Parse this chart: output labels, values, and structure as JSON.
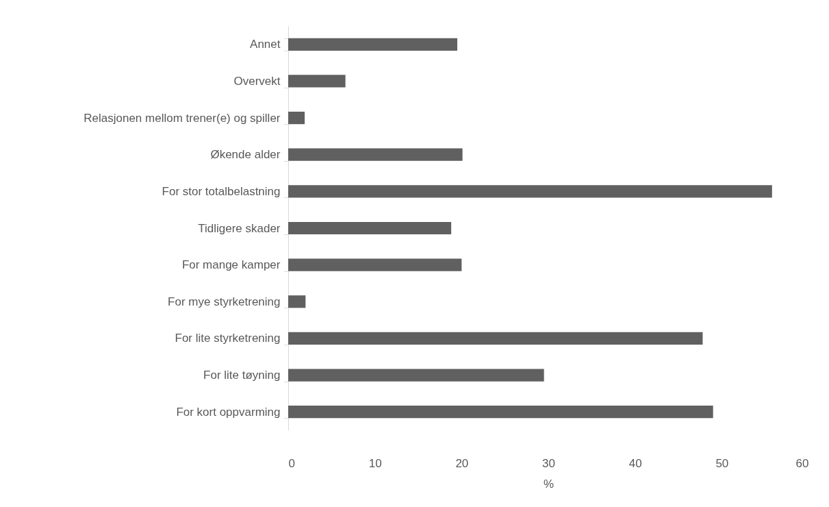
{
  "chart_data": {
    "type": "bar",
    "orientation": "horizontal",
    "xlabel": "%",
    "categories": [
      "Annet",
      "Overvekt",
      "Relasjonen mellom trener(e) og spiller",
      "Økende alder",
      "For stor totalbelastning",
      "Tidligere skader",
      "For mange kamper",
      "For mye styrketrening",
      "For lite styrketrening",
      "For lite tøyning",
      "For kort oppvarming"
    ],
    "values": [
      19.5,
      6.6,
      1.9,
      20.1,
      55.8,
      18.8,
      20.0,
      2.0,
      47.8,
      29.5,
      49.0
    ],
    "color": "#606060",
    "xlim": [
      0,
      60
    ],
    "xticks": [
      0,
      10,
      20,
      30,
      40,
      50,
      60
    ],
    "grid": false
  }
}
